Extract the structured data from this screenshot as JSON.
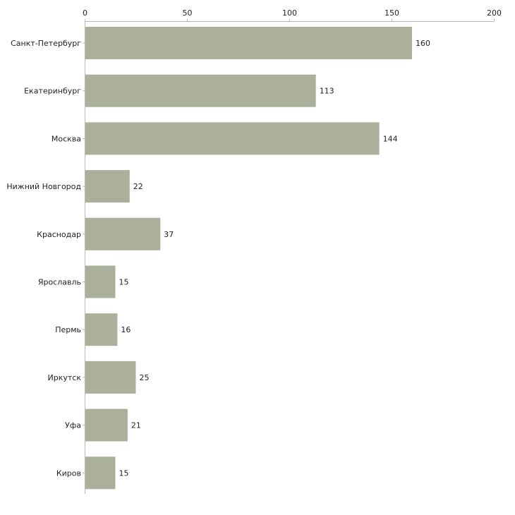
{
  "chart_data": {
    "type": "bar",
    "orientation": "horizontal",
    "title": "",
    "xlabel": "",
    "ylabel": "",
    "xlim": [
      0,
      200
    ],
    "x_ticks": [
      0,
      50,
      100,
      150,
      200
    ],
    "x_tick_labels": [
      "0",
      "50",
      "100",
      "150",
      "200"
    ],
    "x_axis_position": "top",
    "grid": false,
    "legend": "none",
    "categories": [
      "Санкт-Петербург",
      "Екатеринбург",
      "Москва",
      "Нижний Новгород",
      "Краснодар",
      "Ярославль",
      "Пермь",
      "Иркутск",
      "Уфа",
      "Киров"
    ],
    "values": [
      160,
      113,
      144,
      22,
      37,
      15,
      16,
      25,
      21,
      15
    ],
    "value_labels": [
      "160",
      "113",
      "144",
      "22",
      "37",
      "15",
      "16",
      "25",
      "21",
      "15"
    ],
    "colors": {
      "bar": "#abb09a",
      "axis": "#b9b9b9",
      "text": "#222222"
    }
  }
}
